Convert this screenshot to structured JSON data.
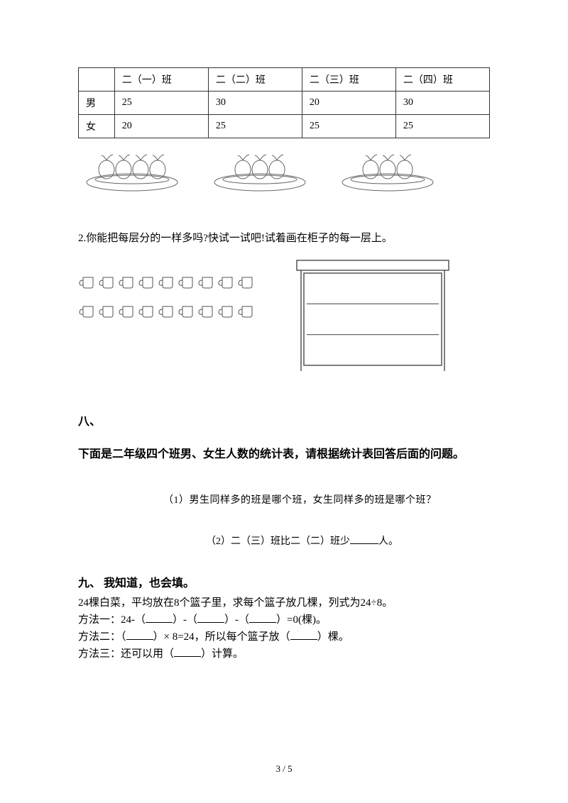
{
  "table": {
    "headers": [
      "",
      "二（一）班",
      "二（二）班",
      "二（三）班",
      "二（四）班"
    ],
    "row_male_label": "男",
    "row_male": [
      "25",
      "30",
      "20",
      "30"
    ],
    "row_female_label": "女",
    "row_female": [
      "20",
      "25",
      "25",
      "25"
    ]
  },
  "plates": {
    "counts": [
      4,
      3,
      3
    ],
    "stroke": "#666666"
  },
  "q2": {
    "text": "2.你能把每层分的一样多吗?快试一试吧!试着画在柜子的每一层上。",
    "cup_rows": [
      9,
      9
    ],
    "cabinet_shelves": 3,
    "stroke": "#555555"
  },
  "section8": {
    "heading": "八、",
    "body": "下面是二年级四个班男、女生人数的统计表，请根据统计表回答后面的问题。",
    "q1": "（1）男生同样多的班是哪个班，女生同样多的班是哪个班？",
    "q2_prefix": "（2）二（三）班比二（二）班少",
    "q2_suffix": "人。"
  },
  "section9": {
    "heading": "九、 我知道，也会填。",
    "line1": "24棵白菜，平均放在8个篮子里，求每个篮子放几棵，列式为24÷8。",
    "m1_a": "方法一：24-（",
    "m1_b": "）-（",
    "m1_c": "）-（",
    "m1_d": "）=0(棵)。",
    "m2_a": "方法二：（",
    "m2_b": "）× 8=24，所以每个篮子放（",
    "m2_c": "）棵。",
    "m3_a": "方法三：还可以用（",
    "m3_b": "）计算。"
  },
  "footer": "3 / 5",
  "colors": {
    "text": "#000000",
    "border": "#333333",
    "stroke_light": "#666666"
  }
}
